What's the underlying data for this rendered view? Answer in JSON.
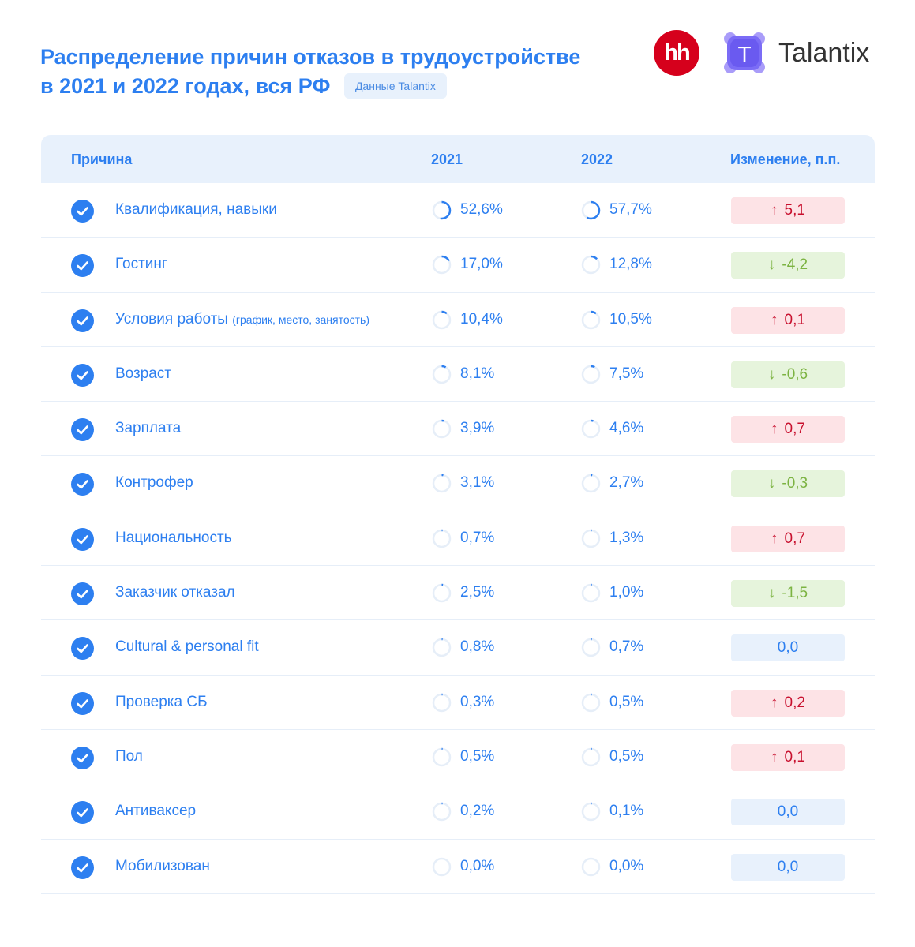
{
  "header": {
    "title_line1": "Распределение причин отказов в трудоустройстве",
    "title_line2": "в 2021 и 2022 годах, вся РФ",
    "badge": "Данные Talantix"
  },
  "logos": {
    "hh_text": "hh",
    "talantix_letter": "T",
    "talantix_text": "Talantix"
  },
  "colors": {
    "accent": "#2d7ff0",
    "up_bg": "#fde3e6",
    "up_text": "#c8102e",
    "down_bg": "#e6f4dc",
    "down_text": "#7cb342",
    "zero_bg": "#e8f1fc",
    "hh_red": "#d6001c",
    "talantix_purple": "#7b6cf6"
  },
  "table": {
    "columns": [
      "Причина",
      "2021",
      "2022",
      "Изменение, п.п."
    ],
    "rows": [
      {
        "reason": "Квалификация, навыки",
        "note": "",
        "v2021": "52,6%",
        "v2022": "57,7%",
        "delta": "5,1",
        "dir": "up"
      },
      {
        "reason": "Гостинг",
        "note": "",
        "v2021": "17,0%",
        "v2022": "12,8%",
        "delta": "-4,2",
        "dir": "down"
      },
      {
        "reason": "Условия работы",
        "note": "(график, место, занятость)",
        "v2021": "10,4%",
        "v2022": "10,5%",
        "delta": "0,1",
        "dir": "up"
      },
      {
        "reason": "Возраст",
        "note": "",
        "v2021": "8,1%",
        "v2022": "7,5%",
        "delta": "-0,6",
        "dir": "down"
      },
      {
        "reason": "Зарплата",
        "note": "",
        "v2021": "3,9%",
        "v2022": "4,6%",
        "delta": "0,7",
        "dir": "up"
      },
      {
        "reason": "Контрофер",
        "note": "",
        "v2021": "3,1%",
        "v2022": "2,7%",
        "delta": "-0,3",
        "dir": "down"
      },
      {
        "reason": "Национальность",
        "note": "",
        "v2021": "0,7%",
        "v2022": "1,3%",
        "delta": "0,7",
        "dir": "up"
      },
      {
        "reason": "Заказчик отказал",
        "note": "",
        "v2021": "2,5%",
        "v2022": "1,0%",
        "delta": "-1,5",
        "dir": "down"
      },
      {
        "reason": "Cultural & personal fit",
        "note": "",
        "v2021": "0,8%",
        "v2022": "0,7%",
        "delta": "0,0",
        "dir": "zero"
      },
      {
        "reason": "Проверка СБ",
        "note": "",
        "v2021": "0,3%",
        "v2022": "0,5%",
        "delta": "0,2",
        "dir": "up"
      },
      {
        "reason": "Пол",
        "note": "",
        "v2021": "0,5%",
        "v2022": "0,5%",
        "delta": "0,1",
        "dir": "up"
      },
      {
        "reason": "Антиваксер",
        "note": "",
        "v2021": "0,2%",
        "v2022": "0,1%",
        "delta": "0,0",
        "dir": "zero"
      },
      {
        "reason": "Мобилизован",
        "note": "",
        "v2021": "0,0%",
        "v2022": "0,0%",
        "delta": "0,0",
        "dir": "zero"
      }
    ]
  },
  "chart_data": {
    "type": "table",
    "columns": [
      "Причина",
      "2021",
      "2022",
      "Изменение, п.п."
    ],
    "categories": [
      "Квалификация, навыки",
      "Гостинг",
      "Условия работы (график, место, занятость)",
      "Возраст",
      "Зарплата",
      "Контрофер",
      "Национальность",
      "Заказчик отказал",
      "Cultural & personal fit",
      "Проверка СБ",
      "Пол",
      "Антиваксер",
      "Мобилизован"
    ],
    "series": [
      {
        "name": "2021",
        "values": [
          52.6,
          17.0,
          10.4,
          8.1,
          3.9,
          3.1,
          0.7,
          2.5,
          0.8,
          0.3,
          0.5,
          0.2,
          0.0
        ]
      },
      {
        "name": "2022",
        "values": [
          57.7,
          12.8,
          10.5,
          7.5,
          4.6,
          2.7,
          1.3,
          1.0,
          0.7,
          0.5,
          0.5,
          0.1,
          0.0
        ]
      },
      {
        "name": "Изменение, п.п.",
        "values": [
          5.1,
          -4.2,
          0.1,
          -0.6,
          0.7,
          -0.3,
          0.7,
          -1.5,
          0.0,
          0.2,
          0.1,
          0.0,
          0.0
        ]
      }
    ]
  }
}
